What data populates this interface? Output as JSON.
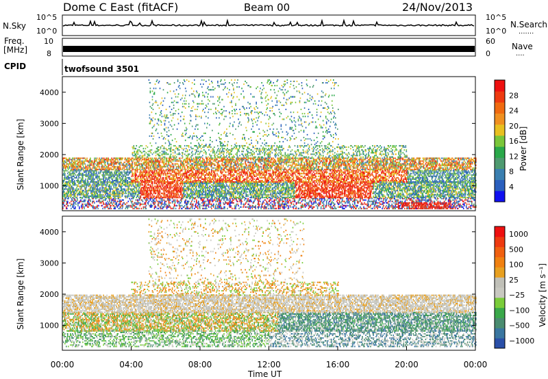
{
  "header": {
    "title": "Dome C East (fitACF)",
    "beam": "Beam 00",
    "date": "24/Nov/2013"
  },
  "nsky_panel": {
    "left_label": "N.Sky",
    "right_label": "N.Search",
    "tick_top": "10^5",
    "tick_bottom": "10^0",
    "right_dots": "·······"
  },
  "freq_panel": {
    "left_label_line1": "Freq.",
    "left_label_line2": "[MHz]",
    "left_tick_top": "10",
    "left_tick_bottom": "8",
    "right_label": "Nave",
    "right_tick_top": "60",
    "right_tick_bottom": "0",
    "right_dots": "····"
  },
  "cpid_panel": {
    "label": "CPID",
    "program": "twofsound 3501"
  },
  "chart_data": [
    {
      "type": "heatmap",
      "name": "Power",
      "ylabel": "Slant Range [km]",
      "ylim": [
        200,
        4500
      ],
      "yticks": [
        "1000",
        "2000",
        "3000",
        "4000"
      ],
      "ytick_values": [
        1000,
        2000,
        3000,
        4000
      ],
      "xlim": [
        0,
        24
      ],
      "colorbar": {
        "label": "Power [dB]",
        "range": [
          0,
          32
        ],
        "ticks": [
          "4",
          "8",
          "12",
          "16",
          "20",
          "24",
          "28"
        ],
        "tick_values": [
          4,
          8,
          12,
          16,
          20,
          24,
          28
        ],
        "colors": [
          "#1010f0",
          "#2a5fbe",
          "#3a7fb0",
          "#4e9a70",
          "#2aa84a",
          "#7ac63a",
          "#e8c020",
          "#f09020",
          "#f06a10",
          "#ee3a10",
          "#ee1010"
        ]
      }
    },
    {
      "type": "heatmap",
      "name": "Velocity",
      "ylabel": "Slant Range [km]",
      "ylim": [
        200,
        4500
      ],
      "yticks": [
        "1000",
        "2000",
        "3000",
        "4000"
      ],
      "ytick_values": [
        1000,
        2000,
        3000,
        4000
      ],
      "xlabel": "Time UT",
      "xlim": [
        0,
        24
      ],
      "xticks": [
        "00:00",
        "04:00",
        "08:00",
        "12:00",
        "16:00",
        "20:00",
        "00:00"
      ],
      "xtick_values": [
        0,
        4,
        8,
        12,
        16,
        20,
        24
      ],
      "colorbar": {
        "label": "Velocity [m s⁻¹]",
        "ticks": [
          "1000",
          "500",
          "100",
          "25",
          "−25",
          "−100",
          "−500",
          "−1000"
        ],
        "colors": [
          "#2a4fa8",
          "#3a76a0",
          "#4a8c70",
          "#3aa84a",
          "#7acc3a",
          "#c8c8c0",
          "#c0c0b8",
          "#e8a020",
          "#f08010",
          "#f06010",
          "#ee3a10",
          "#ee1010"
        ]
      }
    }
  ]
}
